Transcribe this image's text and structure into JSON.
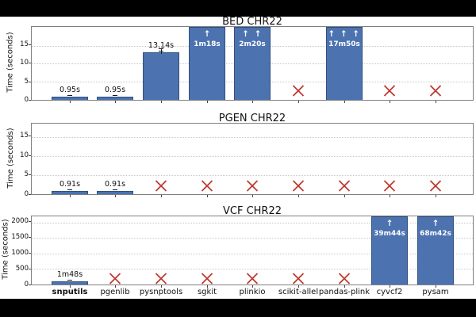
{
  "colors": {
    "canvas_background": "#000000",
    "figure_background": "#ffffff",
    "bar_fill": "#4c72b0",
    "bar_edge": "#30507e",
    "fail_x": "#bd3a30",
    "gridline": "#c9c9c9",
    "spine": "#7f7f7f",
    "clipped_label_text": "#ffffff"
  },
  "categories": [
    {
      "label": "snputils",
      "bold": true
    },
    {
      "label": "pgenlib",
      "bold": false
    },
    {
      "label": "pysnptools",
      "bold": false
    },
    {
      "label": "sgkit",
      "bold": false
    },
    {
      "label": "plinkio",
      "bold": false
    },
    {
      "label": "scikit-allel",
      "bold": false
    },
    {
      "label": "pandas-plink",
      "bold": false
    },
    {
      "label": "cyvcf2",
      "bold": false
    },
    {
      "label": "pysam",
      "bold": false
    }
  ],
  "chart_data": [
    {
      "type": "bar",
      "title": "BED CHR22",
      "ylabel": "Time (seconds)",
      "yticks": [
        0,
        5,
        10,
        15
      ],
      "ylim": [
        0,
        20.2
      ],
      "grid": true,
      "bars": [
        {
          "tool": "snputils",
          "seconds": 0.95,
          "display": "0.95s",
          "status": "ok"
        },
        {
          "tool": "pgenlib",
          "seconds": 0.95,
          "display": "0.95s",
          "status": "ok"
        },
        {
          "tool": "pysnptools",
          "seconds": 13.14,
          "display": "13.14s",
          "status": "ok"
        },
        {
          "tool": "sgkit",
          "seconds": 78,
          "display": "1m18s",
          "arrows": 1,
          "status": "offscale"
        },
        {
          "tool": "plinkio",
          "seconds": 140,
          "display": "2m20s",
          "arrows": 2,
          "status": "offscale"
        },
        {
          "tool": "scikit-allel",
          "status": "failed"
        },
        {
          "tool": "pandas-plink",
          "seconds": 1070,
          "display": "17m50s",
          "arrows": 3,
          "status": "offscale"
        },
        {
          "tool": "cyvcf2",
          "status": "failed"
        },
        {
          "tool": "pysam",
          "status": "failed"
        }
      ]
    },
    {
      "type": "bar",
      "title": "PGEN CHR22",
      "ylabel": "Time (seconds)",
      "yticks": [
        0,
        5,
        10,
        15
      ],
      "ylim": [
        0,
        18.5
      ],
      "grid": true,
      "bars": [
        {
          "tool": "snputils",
          "seconds": 0.91,
          "display": "0.91s",
          "status": "ok"
        },
        {
          "tool": "pgenlib",
          "seconds": 0.91,
          "display": "0.91s",
          "status": "ok"
        },
        {
          "tool": "pysnptools",
          "status": "failed"
        },
        {
          "tool": "sgkit",
          "status": "failed"
        },
        {
          "tool": "plinkio",
          "status": "failed"
        },
        {
          "tool": "scikit-allel",
          "status": "failed"
        },
        {
          "tool": "pandas-plink",
          "status": "failed"
        },
        {
          "tool": "cyvcf2",
          "status": "failed"
        },
        {
          "tool": "pysam",
          "status": "failed"
        }
      ]
    },
    {
      "type": "bar",
      "title": "VCF CHR22",
      "ylabel": "Time (seconds)",
      "yticks": [
        0,
        500,
        1000,
        1500,
        2000
      ],
      "ylim": [
        0,
        2200
      ],
      "grid": true,
      "bars": [
        {
          "tool": "snputils",
          "seconds": 108,
          "display": "1m48s",
          "status": "ok"
        },
        {
          "tool": "pgenlib",
          "status": "failed"
        },
        {
          "tool": "pysnptools",
          "status": "failed"
        },
        {
          "tool": "sgkit",
          "status": "failed"
        },
        {
          "tool": "plinkio",
          "status": "failed"
        },
        {
          "tool": "scikit-allel",
          "status": "failed"
        },
        {
          "tool": "pandas-plink",
          "status": "failed"
        },
        {
          "tool": "cyvcf2",
          "seconds": 2384,
          "display": "39m44s",
          "arrows": 1,
          "status": "offscale"
        },
        {
          "tool": "pysam",
          "seconds": 4122,
          "display": "68m42s",
          "arrows": 1,
          "status": "offscale"
        }
      ]
    }
  ]
}
